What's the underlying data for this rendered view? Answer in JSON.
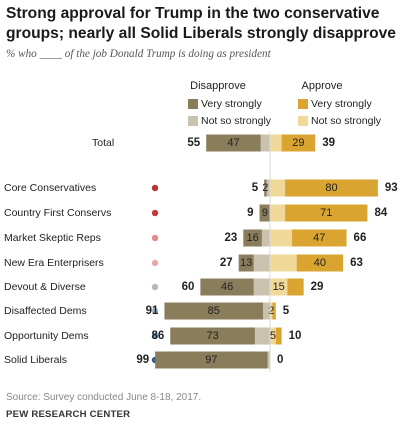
{
  "chart_data": {
    "type": "bar",
    "title": "Strong approval for Trump in the two conservative groups; nearly all Solid Liberals strongly disapprove",
    "subtitle": "% who ____ of the job Donald Trump is doing as president",
    "group_labels": {
      "disapprove": "Disapprove",
      "approve": "Approve"
    },
    "series": [
      {
        "name": "Very strongly",
        "side": "disapprove",
        "color": "#8a7d5b"
      },
      {
        "name": "Not so strongly",
        "side": "disapprove",
        "color": "#c9c2ae"
      },
      {
        "name": "Very strongly",
        "side": "approve",
        "color": "#d9a430"
      },
      {
        "name": "Not so strongly",
        "side": "approve",
        "color": "#efd898"
      }
    ],
    "categories": [
      {
        "label": "Total",
        "dot": null,
        "dis_very": 47,
        "dis_notso": 8,
        "dis_total": 55,
        "app_notso": 10,
        "app_very": 29,
        "app_total": 39,
        "label_dis_very": "47",
        "label_dis_notso": "",
        "label_app_notso": "",
        "label_app_very": "29"
      },
      {
        "label": "Core Conservatives",
        "dot": "#b83232",
        "dis_very": 2,
        "dis_notso": 3,
        "dis_total": 5,
        "app_notso": 13,
        "app_very": 80,
        "app_total": 93,
        "label_dis_very": "2",
        "label_dis_notso": "",
        "label_app_notso": "",
        "label_app_very": "80"
      },
      {
        "label": "Country First Conservs",
        "dot": "#c43a3a",
        "dis_very": 9,
        "dis_notso": 0,
        "dis_total": 9,
        "app_notso": 13,
        "app_very": 71,
        "app_total": 84,
        "label_dis_very": "9",
        "label_dis_notso": "",
        "label_app_notso": "",
        "label_app_very": "71"
      },
      {
        "label": "Market Skeptic Reps",
        "dot": "#e08a8a",
        "dis_very": 16,
        "dis_notso": 7,
        "dis_total": 23,
        "app_notso": 19,
        "app_very": 47,
        "app_total": 66,
        "label_dis_very": "16",
        "label_dis_notso": "",
        "label_app_notso": "",
        "label_app_very": "47"
      },
      {
        "label": "New Era Enterprisers",
        "dot": "#eaa7a7",
        "dis_very": 13,
        "dis_notso": 14,
        "dis_total": 27,
        "app_notso": 23,
        "app_very": 40,
        "app_total": 63,
        "label_dis_very": "13",
        "label_dis_notso": "",
        "label_app_notso": "",
        "label_app_very": "40"
      },
      {
        "label": "Devout & Diverse",
        "dot": "#b8b8b8",
        "dis_very": 46,
        "dis_notso": 14,
        "dis_total": 60,
        "app_notso": 15,
        "app_very": 14,
        "app_total": 29,
        "label_dis_very": "46",
        "label_dis_notso": "",
        "label_app_notso": "15",
        "label_app_very": ""
      },
      {
        "label": "Disaffected Dems",
        "dot": "#9ab8d0",
        "dis_very": 85,
        "dis_notso": 6,
        "dis_total": 91,
        "app_notso": 2,
        "app_very": 3,
        "app_total": 5,
        "label_dis_very": "85",
        "label_dis_notso": "",
        "label_app_notso": "2",
        "label_app_very": ""
      },
      {
        "label": "Opportunity Dems",
        "dot": "#6e9cc0",
        "dis_very": 73,
        "dis_notso": 13,
        "dis_total": 86,
        "app_notso": 5,
        "app_very": 5,
        "app_total": 10,
        "label_dis_very": "73",
        "label_dis_notso": "",
        "label_app_notso": "5",
        "label_app_very": ""
      },
      {
        "label": "Solid Liberals",
        "dot": "#2e5c86",
        "dis_very": 97,
        "dis_notso": 2,
        "dis_total": 99,
        "app_notso": 0,
        "app_very": 0,
        "app_total": 0,
        "label_dis_very": "97",
        "label_dis_notso": "",
        "label_app_notso": "",
        "label_app_very": ""
      }
    ],
    "xlim": [
      -100,
      100
    ]
  },
  "source": "Source: Survey conducted June 8-18, 2017.",
  "org": "PEW RESEARCH CENTER"
}
